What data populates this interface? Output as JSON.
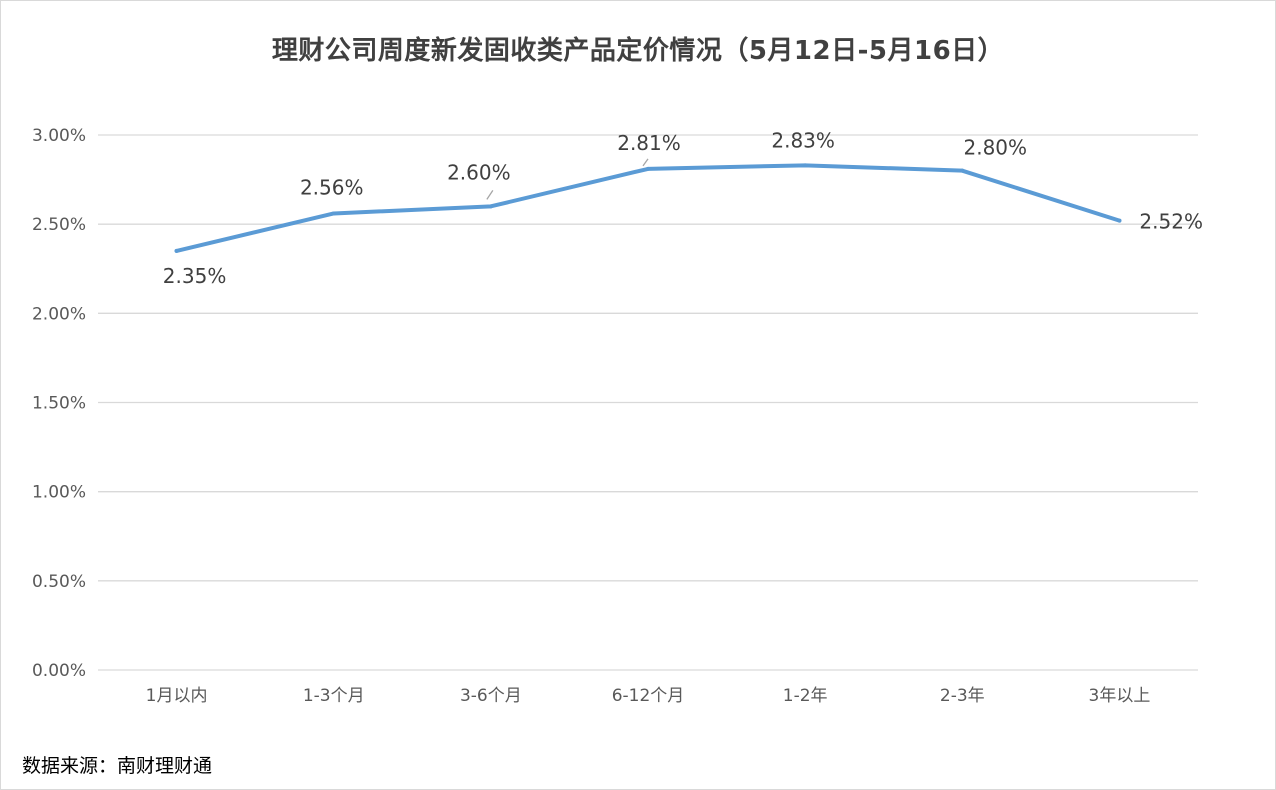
{
  "chart_data": {
    "type": "line",
    "title": "理财公司周度新发固收类产品定价情况（5月12日-5月16日）",
    "xlabel": "",
    "ylabel": "",
    "categories": [
      "1月以内",
      "1-3个月",
      "3-6个月",
      "6-12个月",
      "1-2年",
      "2-3年",
      "3年以上"
    ],
    "series": [
      {
        "values": [
          2.35,
          2.56,
          2.6,
          2.81,
          2.83,
          2.8,
          2.52
        ],
        "data_labels": [
          "2.35%",
          "2.56%",
          "2.60%",
          "2.81%",
          "2.83%",
          "2.80%",
          "2.52%"
        ]
      }
    ],
    "ylim": [
      0,
      3
    ],
    "y_ticks": [
      0,
      0.5,
      1,
      1.5,
      2,
      2.5,
      3
    ],
    "y_tick_labels": [
      "0.00%",
      "0.50%",
      "1.00%",
      "1.50%",
      "2.00%",
      "2.50%",
      "3.00%"
    ],
    "grid": true,
    "legend": "none",
    "colors": {
      "line": "#5b9bd5",
      "grid": "#d9d9d9",
      "axis_text": "#595959",
      "label_text": "#404040",
      "leader": "#a6a6a6"
    }
  },
  "footer": {
    "source": "数据来源：南财理财通"
  }
}
